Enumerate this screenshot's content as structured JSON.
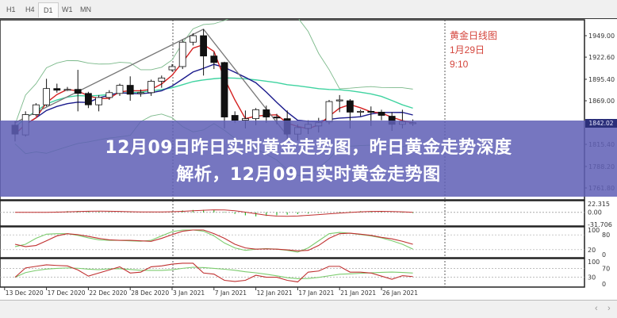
{
  "timeframe_tabs": [
    {
      "label": "H1",
      "active": false
    },
    {
      "label": "H4",
      "active": false
    },
    {
      "label": "D1",
      "active": true
    },
    {
      "label": "W1",
      "active": false
    },
    {
      "label": "MN",
      "active": false
    }
  ],
  "overlay_banner": {
    "line1": "12月09日昨日实时黄金走势图，昨日黄金走势深度",
    "line2": "解析，12月09日实时黄金走势图",
    "color": "#5f60b6"
  },
  "annotation": {
    "title": "黄金日线图",
    "date": "1月29日",
    "time": "9:10",
    "color": "#d4453c"
  },
  "colors": {
    "fast_ma": "#d42020",
    "slow_ma": "#1a1a8c",
    "band": "#7bb98a",
    "mid_band": "#3fd3a0",
    "trendline": "#777777",
    "stoch_main": "#7ccc6e",
    "stoch_signal": "#c03030",
    "histogram": "#2eb82e"
  },
  "chart_data": [
    {
      "type": "candlestick",
      "name": "main",
      "price_axis_labels": [
        "1949.00",
        "1922.60",
        "1895.40",
        "1869.00",
        "1815.40",
        "1788.20",
        "1761.80"
      ],
      "price_axis_values": [
        1949.0,
        1922.6,
        1895.4,
        1869.0,
        1815.4,
        1788.2,
        1761.8
      ],
      "current_price": "1842.02",
      "ylim": [
        1745,
        1962
      ],
      "ohlc": [
        [
          1839,
          1844,
          1819,
          1828
        ],
        [
          1827,
          1856,
          1825,
          1852
        ],
        [
          1852,
          1866,
          1850,
          1864
        ],
        [
          1864,
          1896,
          1862,
          1884
        ],
        [
          1884,
          1890,
          1879,
          1882
        ],
        [
          1883,
          1886,
          1881,
          1883
        ],
        [
          1883,
          1907,
          1856,
          1878
        ],
        [
          1878,
          1880,
          1860,
          1864
        ],
        [
          1864,
          1876,
          1856,
          1873
        ],
        [
          1873,
          1882,
          1870,
          1879
        ],
        [
          1878,
          1890,
          1875,
          1888
        ],
        [
          1888,
          1899,
          1869,
          1877
        ],
        [
          1878,
          1883,
          1874,
          1879
        ],
        [
          1879,
          1895,
          1875,
          1893
        ],
        [
          1893,
          1900,
          1885,
          1897
        ],
        [
          1907,
          1914,
          1905,
          1911
        ],
        [
          1911,
          1944,
          1908,
          1941
        ],
        [
          1941,
          1952,
          1937,
          1949
        ],
        [
          1949,
          1957,
          1900,
          1924
        ],
        [
          1924,
          1929,
          1908,
          1916
        ],
        [
          1916,
          1917,
          1835,
          1849
        ],
        [
          1851,
          1856,
          1842,
          1845
        ],
        [
          1845,
          1857,
          1835,
          1847
        ],
        [
          1847,
          1860,
          1839,
          1858
        ],
        [
          1858,
          1863,
          1842,
          1849
        ],
        [
          1849,
          1853,
          1840,
          1848
        ],
        [
          1847,
          1857,
          1822,
          1828
        ],
        [
          1828,
          1840,
          1820,
          1836
        ],
        [
          1835,
          1845,
          1828,
          1840
        ],
        [
          1838,
          1848,
          1830,
          1842
        ],
        [
          1843,
          1870,
          1840,
          1868
        ],
        [
          1869,
          1876,
          1855,
          1870
        ],
        [
          1869,
          1871,
          1835,
          1855
        ],
        [
          1856,
          1858,
          1850,
          1856
        ],
        [
          1856,
          1862,
          1838,
          1855
        ],
        [
          1855,
          1858,
          1845,
          1851
        ],
        [
          1850,
          1855,
          1832,
          1840
        ],
        [
          1840,
          1858,
          1835,
          1843
        ],
        [
          1842,
          1846,
          1838,
          1842
        ]
      ],
      "trendline": [
        [
          0,
          1842
        ],
        [
          18,
          1957
        ],
        [
          26,
          1826
        ]
      ]
    },
    {
      "type": "histogram",
      "name": "oscillator",
      "axis_labels": [
        "22.315",
        "0.00",
        "-31.706"
      ],
      "ylim": [
        -31.706,
        22.315
      ]
    },
    {
      "type": "line",
      "name": "stochastic",
      "axis_labels": [
        "100",
        "80",
        "20",
        "0"
      ],
      "ylim": [
        0,
        100
      ],
      "series": [
        {
          "values": [
            32,
            42,
            66,
            83,
            85,
            85,
            78,
            68,
            60,
            58,
            58,
            56,
            54,
            58,
            76,
            93,
            100,
            100,
            95,
            76,
            47,
            27,
            17,
            22,
            24,
            22,
            17,
            10,
            27,
            56,
            85,
            90,
            87,
            81,
            76,
            68,
            56,
            42,
            22
          ]
        },
        {
          "values": [
            42,
            32,
            37,
            56,
            76,
            85,
            81,
            74,
            66,
            60,
            58,
            58,
            56,
            54,
            66,
            81,
            95,
            100,
            100,
            85,
            66,
            42,
            27,
            22,
            23,
            22,
            19,
            15,
            17,
            37,
            66,
            85,
            87,
            83,
            78,
            70,
            64,
            54,
            42
          ]
        }
      ]
    },
    {
      "type": "line",
      "name": "rsi",
      "axis_labels": [
        "100",
        "70",
        "30",
        "0"
      ],
      "ylim": [
        0,
        100
      ],
      "series": [
        {
          "values": [
            30,
            72,
            79,
            86,
            83,
            81,
            63,
            35,
            49,
            63,
            77,
            49,
            53,
            77,
            81,
            89,
            93,
            93,
            49,
            44,
            16,
            11,
            16,
            39,
            30,
            30,
            16,
            9,
            53,
            58,
            79,
            79,
            53,
            53,
            49,
            35,
            21,
            37,
            33
          ]
        }
      ]
    }
  ],
  "date_axis": [
    "13 Dec 2020",
    "17 Dec 2020",
    "22 Dec 2020",
    "28 Dec 2020",
    "3 Jan 2021",
    "7 Jan 2021",
    "12 Jan 2021",
    "17 Jan 2021",
    "21 Jan 2021",
    "26 Jan 2021"
  ],
  "scroll": {
    "left": "‹",
    "right": "›"
  }
}
